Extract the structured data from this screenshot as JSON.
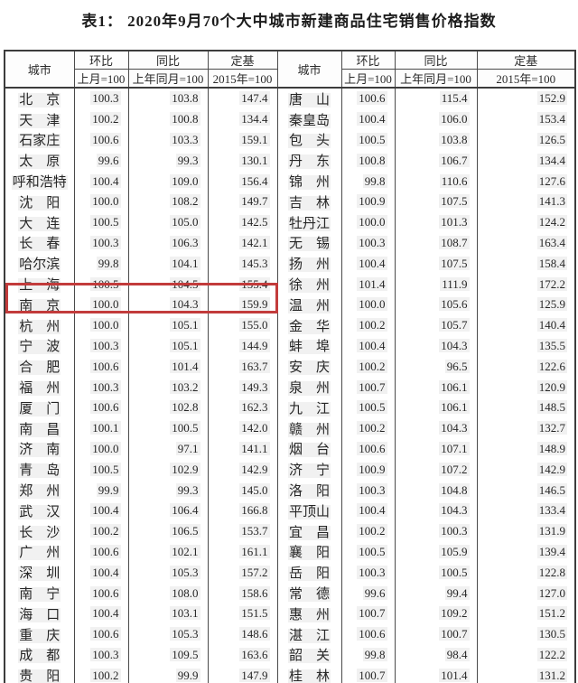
{
  "title": "表1： 2020年9月70个大中城市新建商品住宅销售价格指数",
  "header": {
    "city": "城市",
    "mom": "环比",
    "mom_base": "上月=100",
    "yoy": "同比",
    "yoy_base": "上年同月=100",
    "fixed": "定基",
    "fixed_base": "2015年=100"
  },
  "highlight": {
    "city": "南京",
    "color": "#c23b3b"
  },
  "chart_data": {
    "type": "table",
    "title": "表1： 2020年9月70个大中城市新建商品住宅销售价格指数",
    "columns": [
      "城市",
      "环比 上月=100",
      "同比 上年同月=100",
      "定基 2015年=100"
    ]
  },
  "rows": [
    {
      "left": {
        "city": "北　京",
        "mom": "100.3",
        "yoy": "103.8",
        "fixed": "147.4"
      },
      "right": {
        "city": "唐　山",
        "mom": "100.6",
        "yoy": "115.4",
        "fixed": "152.9"
      }
    },
    {
      "left": {
        "city": "天　津",
        "mom": "100.2",
        "yoy": "100.8",
        "fixed": "134.4"
      },
      "right": {
        "city": "秦皇岛",
        "mom": "100.4",
        "yoy": "106.0",
        "fixed": "153.4"
      }
    },
    {
      "left": {
        "city": "石家庄",
        "mom": "100.6",
        "yoy": "103.3",
        "fixed": "159.1"
      },
      "right": {
        "city": "包　头",
        "mom": "100.5",
        "yoy": "103.8",
        "fixed": "126.5"
      }
    },
    {
      "left": {
        "city": "太　原",
        "mom": "99.6",
        "yoy": "99.3",
        "fixed": "130.1"
      },
      "right": {
        "city": "丹　东",
        "mom": "100.8",
        "yoy": "106.7",
        "fixed": "134.4"
      }
    },
    {
      "left": {
        "city": "呼和浩特",
        "mom": "100.4",
        "yoy": "109.0",
        "fixed": "156.4"
      },
      "right": {
        "city": "锦　州",
        "mom": "99.8",
        "yoy": "110.6",
        "fixed": "127.6"
      }
    },
    {
      "left": {
        "city": "沈　阳",
        "mom": "100.0",
        "yoy": "108.2",
        "fixed": "149.7"
      },
      "right": {
        "city": "吉　林",
        "mom": "100.9",
        "yoy": "107.5",
        "fixed": "141.3"
      }
    },
    {
      "left": {
        "city": "大　连",
        "mom": "100.5",
        "yoy": "105.0",
        "fixed": "142.5"
      },
      "right": {
        "city": "牡丹江",
        "mom": "100.0",
        "yoy": "101.3",
        "fixed": "124.2"
      }
    },
    {
      "left": {
        "city": "长　春",
        "mom": "100.3",
        "yoy": "106.3",
        "fixed": "142.1"
      },
      "right": {
        "city": "无　锡",
        "mom": "100.3",
        "yoy": "108.7",
        "fixed": "163.4"
      }
    },
    {
      "left": {
        "city": "哈尔滨",
        "mom": "99.8",
        "yoy": "104.1",
        "fixed": "145.3"
      },
      "right": {
        "city": "扬　州",
        "mom": "100.4",
        "yoy": "107.5",
        "fixed": "158.4"
      }
    },
    {
      "left": {
        "city": "上　海",
        "mom": "100.5",
        "yoy": "104.5",
        "fixed": "155.4"
      },
      "right": {
        "city": "徐　州",
        "mom": "101.4",
        "yoy": "111.9",
        "fixed": "172.2"
      }
    },
    {
      "left": {
        "city": "南　京",
        "mom": "100.0",
        "yoy": "104.3",
        "fixed": "159.9"
      },
      "right": {
        "city": "温　州",
        "mom": "100.0",
        "yoy": "105.6",
        "fixed": "125.9"
      }
    },
    {
      "left": {
        "city": "杭　州",
        "mom": "100.0",
        "yoy": "105.1",
        "fixed": "155.0"
      },
      "right": {
        "city": "金　华",
        "mom": "100.2",
        "yoy": "105.7",
        "fixed": "140.4"
      }
    },
    {
      "left": {
        "city": "宁　波",
        "mom": "100.3",
        "yoy": "105.1",
        "fixed": "144.9"
      },
      "right": {
        "city": "蚌　埠",
        "mom": "100.4",
        "yoy": "104.3",
        "fixed": "135.5"
      }
    },
    {
      "left": {
        "city": "合　肥",
        "mom": "100.6",
        "yoy": "101.4",
        "fixed": "163.7"
      },
      "right": {
        "city": "安　庆",
        "mom": "100.2",
        "yoy": "96.5",
        "fixed": "122.6"
      }
    },
    {
      "left": {
        "city": "福　州",
        "mom": "100.3",
        "yoy": "103.2",
        "fixed": "149.3"
      },
      "right": {
        "city": "泉　州",
        "mom": "100.7",
        "yoy": "106.1",
        "fixed": "120.9"
      }
    },
    {
      "left": {
        "city": "厦　门",
        "mom": "100.6",
        "yoy": "102.8",
        "fixed": "162.3"
      },
      "right": {
        "city": "九　江",
        "mom": "100.5",
        "yoy": "106.1",
        "fixed": "148.5"
      }
    },
    {
      "left": {
        "city": "南　昌",
        "mom": "100.1",
        "yoy": "100.5",
        "fixed": "142.0"
      },
      "right": {
        "city": "赣　州",
        "mom": "100.2",
        "yoy": "104.3",
        "fixed": "132.7"
      }
    },
    {
      "left": {
        "city": "济　南",
        "mom": "100.0",
        "yoy": "97.1",
        "fixed": "141.1"
      },
      "right": {
        "city": "烟　台",
        "mom": "100.6",
        "yoy": "107.1",
        "fixed": "148.9"
      }
    },
    {
      "left": {
        "city": "青　岛",
        "mom": "100.5",
        "yoy": "102.9",
        "fixed": "142.9"
      },
      "right": {
        "city": "济　宁",
        "mom": "100.9",
        "yoy": "107.2",
        "fixed": "142.9"
      }
    },
    {
      "left": {
        "city": "郑　州",
        "mom": "99.9",
        "yoy": "99.3",
        "fixed": "145.0"
      },
      "right": {
        "city": "洛　阳",
        "mom": "100.3",
        "yoy": "104.8",
        "fixed": "146.5"
      }
    },
    {
      "left": {
        "city": "武　汉",
        "mom": "100.4",
        "yoy": "106.4",
        "fixed": "166.8"
      },
      "right": {
        "city": "平顶山",
        "mom": "100.4",
        "yoy": "104.3",
        "fixed": "133.4"
      }
    },
    {
      "left": {
        "city": "长　沙",
        "mom": "100.2",
        "yoy": "106.5",
        "fixed": "153.7"
      },
      "right": {
        "city": "宜　昌",
        "mom": "100.2",
        "yoy": "100.3",
        "fixed": "131.9"
      }
    },
    {
      "left": {
        "city": "广　州",
        "mom": "100.6",
        "yoy": "102.1",
        "fixed": "161.1"
      },
      "right": {
        "city": "襄　阳",
        "mom": "100.5",
        "yoy": "105.9",
        "fixed": "139.4"
      }
    },
    {
      "left": {
        "city": "深　圳",
        "mom": "100.4",
        "yoy": "105.3",
        "fixed": "157.2"
      },
      "right": {
        "city": "岳　阳",
        "mom": "100.3",
        "yoy": "100.5",
        "fixed": "122.8"
      }
    },
    {
      "left": {
        "city": "南　宁",
        "mom": "100.6",
        "yoy": "108.0",
        "fixed": "158.6"
      },
      "right": {
        "city": "常　德",
        "mom": "99.6",
        "yoy": "99.4",
        "fixed": "127.0"
      }
    },
    {
      "left": {
        "city": "海　口",
        "mom": "100.4",
        "yoy": "103.1",
        "fixed": "151.5"
      },
      "right": {
        "city": "惠　州",
        "mom": "100.7",
        "yoy": "109.2",
        "fixed": "151.2"
      }
    },
    {
      "left": {
        "city": "重　庆",
        "mom": "100.6",
        "yoy": "105.3",
        "fixed": "148.6"
      },
      "right": {
        "city": "湛　江",
        "mom": "100.6",
        "yoy": "100.7",
        "fixed": "130.5"
      }
    },
    {
      "left": {
        "city": "成　都",
        "mom": "100.3",
        "yoy": "109.5",
        "fixed": "163.6"
      },
      "right": {
        "city": "韶　关",
        "mom": "99.8",
        "yoy": "98.4",
        "fixed": "122.2"
      }
    },
    {
      "left": {
        "city": "贵　阳",
        "mom": "100.2",
        "yoy": "99.9",
        "fixed": "147.9"
      },
      "right": {
        "city": "桂　林",
        "mom": "100.7",
        "yoy": "101.4",
        "fixed": "131.2"
      }
    }
  ]
}
